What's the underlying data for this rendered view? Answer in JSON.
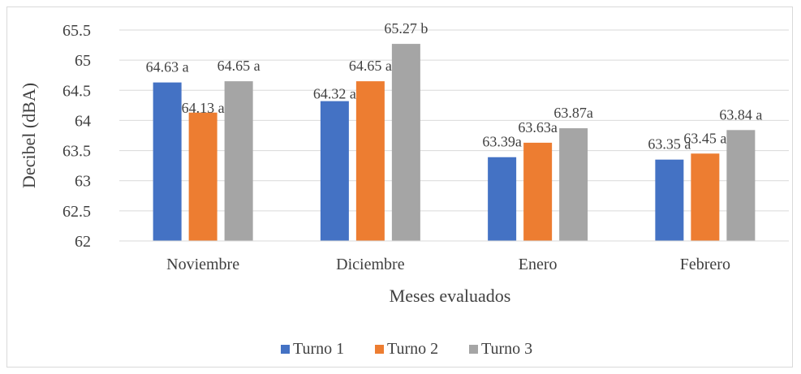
{
  "chart_data": {
    "type": "bar",
    "title": "",
    "xlabel": "Meses evaluados",
    "ylabel": "Decibel (dBA)",
    "ylim": [
      62,
      65.5
    ],
    "y_ticks": [
      62,
      62.5,
      63,
      63.5,
      64,
      64.5,
      65,
      65.5
    ],
    "y_tick_labels": [
      "62",
      "62.5",
      "63",
      "63.5",
      "64",
      "64.5",
      "65",
      "65.5"
    ],
    "grid": true,
    "legend_position": "bottom",
    "categories": [
      "Noviembre",
      "Diciembre",
      "Enero",
      "Febrero"
    ],
    "series": [
      {
        "name": "Turno 1",
        "color": "#4472c4",
        "values": [
          64.63,
          64.32,
          63.39,
          63.35
        ],
        "labels": [
          "64.63 a",
          "64.32 a",
          "63.39a",
          "63.35 a"
        ]
      },
      {
        "name": "Turno 2",
        "color": "#ed7d31",
        "values": [
          64.13,
          64.65,
          63.63,
          63.45
        ],
        "labels": [
          "64.13 a",
          "64.65 a",
          "63.63a",
          "63.45 a"
        ]
      },
      {
        "name": "Turno 3",
        "color": "#a5a5a5",
        "values": [
          64.65,
          65.27,
          63.87,
          63.84
        ],
        "labels": [
          "64.65 a",
          "65.27 b",
          "63.87a",
          "63.84 a"
        ]
      }
    ]
  }
}
